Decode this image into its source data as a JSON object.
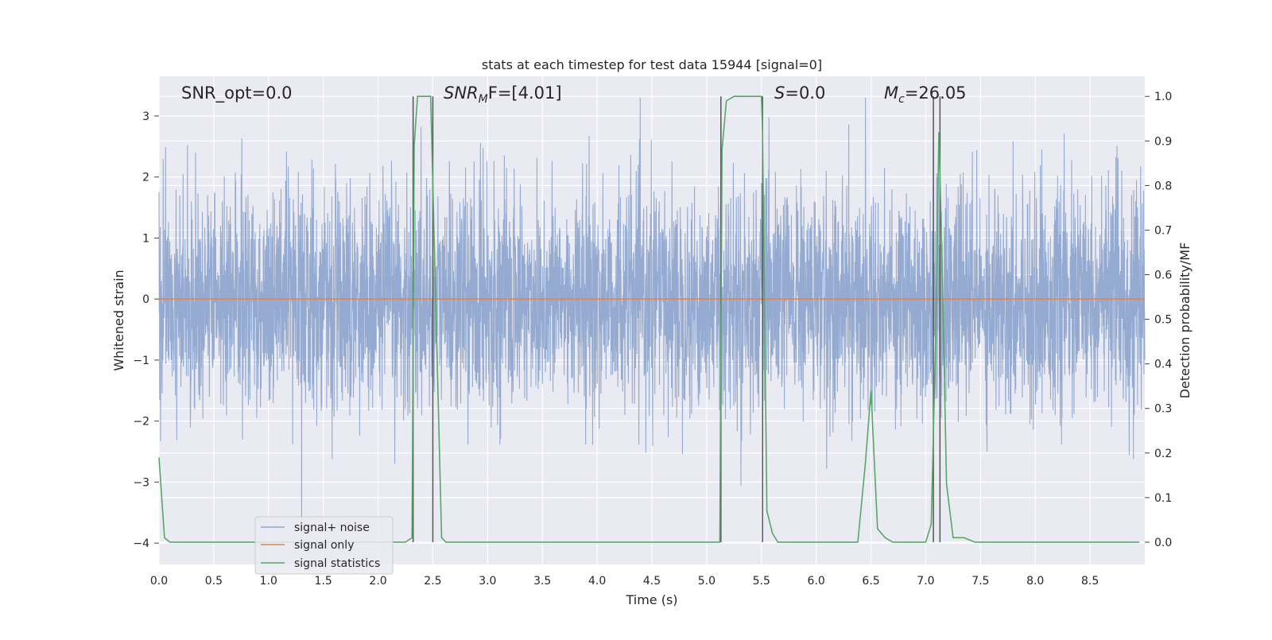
{
  "chart_data": {
    "type": "line",
    "title": "stats at each timestep for test data 15944 [signal=0]",
    "xlabel": "Time (s)",
    "ylabel": "Whitened strain",
    "ylabel_right": "Detection probability/MF",
    "xlim": [
      0.0,
      9.0
    ],
    "ylim": [
      -4.35,
      3.65
    ],
    "ylim_right": [
      -0.05,
      1.045
    ],
    "x_ticks": [
      "0.0",
      "0.5",
      "1.0",
      "1.5",
      "2.0",
      "2.5",
      "3.0",
      "3.5",
      "4.0",
      "4.5",
      "5.0",
      "5.5",
      "6.0",
      "6.5",
      "7.0",
      "7.5",
      "8.0",
      "8.5"
    ],
    "y_ticks": [
      "3",
      "2",
      "1",
      "0",
      "−1",
      "−2",
      "−3",
      "−4"
    ],
    "y_ticks_right": [
      "1.0",
      "0.9",
      "0.8",
      "0.7",
      "0.6",
      "0.5",
      "0.4",
      "0.3",
      "0.2",
      "0.1",
      "0.0"
    ],
    "grid": true,
    "legend_placement": "lower-left",
    "annotations": {
      "snr_opt": "SNR_opt=0.0",
      "snr_mf_base": "SNR",
      "snr_mf_sub": "M",
      "snr_mf_rest": "F=[4.01]",
      "s_sym": "S",
      "s_val": "=0.0",
      "mc_sym": "M",
      "mc_sub": "c",
      "mc_val": "=26.05"
    },
    "vertical_lines_x": [
      2.32,
      2.5,
      5.13,
      5.51,
      7.07,
      7.13
    ],
    "series": [
      {
        "name": "signal+ noise",
        "color": "#8fa6cf",
        "noise_std": 0.9,
        "n_samples": 4500
      },
      {
        "name": "signal only",
        "color": "#dd8452",
        "values_constant": 0.0
      },
      {
        "name": "signal statistics",
        "color": "#55a868",
        "axis": "right",
        "points": [
          [
            0.0,
            0.19
          ],
          [
            0.05,
            0.01
          ],
          [
            0.1,
            0.0
          ],
          [
            0.5,
            0.0
          ],
          [
            1.0,
            0.0
          ],
          [
            1.5,
            0.0
          ],
          [
            2.0,
            0.0
          ],
          [
            2.25,
            0.0
          ],
          [
            2.31,
            0.01
          ],
          [
            2.33,
            0.89
          ],
          [
            2.36,
            1.0
          ],
          [
            2.48,
            1.0
          ],
          [
            2.58,
            0.01
          ],
          [
            2.62,
            0.0
          ],
          [
            3.0,
            0.0
          ],
          [
            4.0,
            0.0
          ],
          [
            4.5,
            0.0
          ],
          [
            5.12,
            0.0
          ],
          [
            5.14,
            0.88
          ],
          [
            5.18,
            0.99
          ],
          [
            5.25,
            1.0
          ],
          [
            5.5,
            1.0
          ],
          [
            5.51,
            0.92
          ],
          [
            5.55,
            0.07
          ],
          [
            5.6,
            0.02
          ],
          [
            5.65,
            0.0
          ],
          [
            6.0,
            0.0
          ],
          [
            6.38,
            0.0
          ],
          [
            6.45,
            0.18
          ],
          [
            6.5,
            0.34
          ],
          [
            6.56,
            0.03
          ],
          [
            6.63,
            0.01
          ],
          [
            6.7,
            0.0
          ],
          [
            7.0,
            0.0
          ],
          [
            7.05,
            0.04
          ],
          [
            7.09,
            0.45
          ],
          [
            7.12,
            0.92
          ],
          [
            7.15,
            0.62
          ],
          [
            7.19,
            0.13
          ],
          [
            7.25,
            0.01
          ],
          [
            7.3,
            0.01
          ],
          [
            7.35,
            0.01
          ],
          [
            7.45,
            0.0
          ],
          [
            8.0,
            0.0
          ],
          [
            8.5,
            0.0
          ],
          [
            8.95,
            0.0
          ]
        ]
      }
    ]
  }
}
